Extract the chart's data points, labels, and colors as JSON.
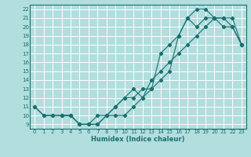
{
  "xlabel": "Humidex (Indice chaleur)",
  "bg_color": "#b2dede",
  "grid_color": "#ffffff",
  "line_color": "#1a7070",
  "xlim": [
    -0.5,
    23.5
  ],
  "ylim": [
    8.5,
    22.5
  ],
  "xticks": [
    0,
    1,
    2,
    3,
    4,
    5,
    6,
    7,
    8,
    9,
    10,
    11,
    12,
    13,
    14,
    15,
    16,
    17,
    18,
    19,
    20,
    21,
    22,
    23
  ],
  "yticks": [
    9,
    10,
    11,
    12,
    13,
    14,
    15,
    16,
    17,
    18,
    19,
    20,
    21,
    22
  ],
  "line1_x": [
    0,
    1,
    2,
    3,
    4,
    5,
    6,
    7,
    8,
    9,
    10,
    11,
    12,
    13,
    14,
    15,
    16,
    17,
    18,
    19,
    20,
    21,
    22,
    23
  ],
  "line1_y": [
    11,
    10,
    10,
    10,
    10,
    9,
    9,
    9,
    10,
    10,
    10,
    11,
    12,
    14,
    15,
    16,
    17,
    18,
    19,
    20,
    21,
    21,
    21,
    18
  ],
  "line2_x": [
    0,
    1,
    2,
    3,
    4,
    5,
    6,
    7,
    8,
    9,
    10,
    11,
    12,
    13,
    14,
    15,
    16,
    17,
    18,
    19,
    20,
    21,
    22,
    23
  ],
  "line2_y": [
    11,
    10,
    10,
    10,
    10,
    9,
    9,
    9,
    10,
    11,
    12,
    12,
    13,
    13,
    14,
    15,
    19,
    21,
    20,
    21,
    21,
    20,
    20,
    18
  ],
  "line3_x": [
    3,
    4,
    5,
    6,
    7,
    8,
    9,
    10,
    11,
    12,
    13,
    14,
    15,
    16,
    17,
    18,
    19,
    20,
    21,
    22,
    23
  ],
  "line3_y": [
    10,
    10,
    9,
    9,
    10,
    10,
    11,
    12,
    13,
    12,
    13,
    17,
    18,
    19,
    21,
    22,
    22,
    21,
    21,
    20,
    18
  ]
}
